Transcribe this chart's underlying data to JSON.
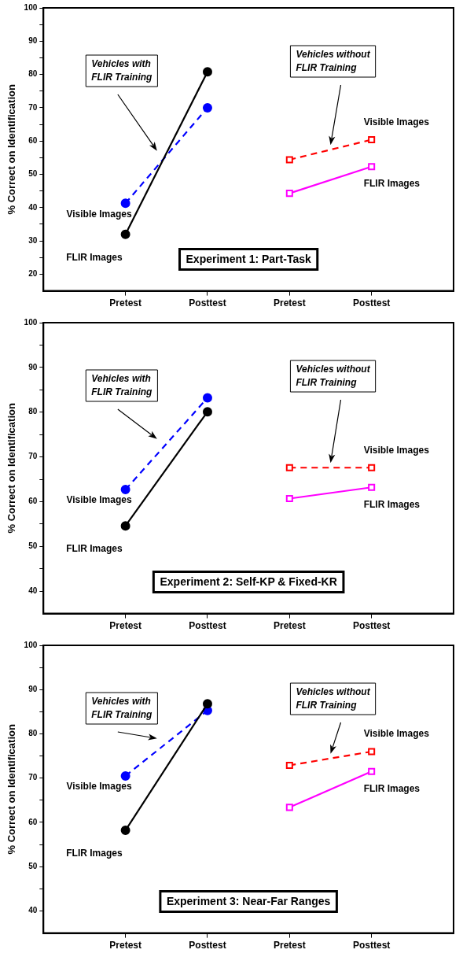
{
  "chart_data": [
    {
      "type": "line",
      "title": "Experiment 1: Part-Task",
      "ylabel": "% Correct on Identification",
      "categories": [
        "Pretest",
        "Posttest",
        "Pretest",
        "Posttest"
      ],
      "series": [
        {
          "name": "Visible Images",
          "color": "#0000ff",
          "values": [
            41.3,
            70,
            null,
            null
          ],
          "marker": "circle",
          "line_style": "dashed"
        },
        {
          "name": "FLIR Images",
          "color": "#000000",
          "values": [
            32,
            80.8,
            null,
            null
          ],
          "marker": "circle",
          "line_style": "solid"
        },
        {
          "name": "Visible Images",
          "color": "#ff0000",
          "values": [
            null,
            null,
            54.4,
            60.4
          ],
          "marker": "square",
          "line_style": "dashed"
        },
        {
          "name": "FLIR Images",
          "color": "#ff00ff",
          "values": [
            null,
            null,
            44.3,
            52.3
          ],
          "marker": "square",
          "line_style": "solid"
        }
      ],
      "annotations": [
        "Vehicles with\nFLIR Training",
        "Vehicles without\nFLIR Training"
      ],
      "ylim": [
        15,
        100
      ],
      "yticks": [
        20,
        {
          "value": 25,
          "label": null
        },
        30,
        {
          "value": 35,
          "label": null
        },
        40,
        {
          "value": 45,
          "label": null
        },
        50,
        {
          "value": 55,
          "label": null
        },
        60,
        {
          "value": 65,
          "label": null
        },
        70,
        {
          "value": 75,
          "label": null
        },
        80,
        {
          "value": 85,
          "label": null
        },
        90,
        {
          "value": 95,
          "label": null
        },
        100
      ],
      "grid": false,
      "legend": false
    },
    {
      "type": "line",
      "title": "Experiment 2: Self-KP & Fixed-KR",
      "ylabel": "% Correct on Identification",
      "categories": [
        "Pretest",
        "Posttest",
        "Pretest",
        "Posttest"
      ],
      "series": [
        {
          "name": "Visible Images",
          "color": "#0000ff",
          "values": [
            62.7,
            83.2,
            null,
            null
          ],
          "marker": "circle",
          "line_style": "dashed"
        },
        {
          "name": "FLIR Images",
          "color": "#000000",
          "values": [
            54.6,
            80.1,
            null,
            null
          ],
          "marker": "circle",
          "line_style": "solid"
        },
        {
          "name": "Visible Images",
          "color": "#ff0000",
          "values": [
            null,
            null,
            67.6,
            67.6
          ],
          "marker": "square",
          "line_style": "dashed"
        },
        {
          "name": "FLIR Images",
          "color": "#ff00ff",
          "values": [
            null,
            null,
            60.7,
            63.2
          ],
          "marker": "square",
          "line_style": "solid"
        }
      ],
      "annotations": [
        "Vehicles with\nFLIR Training",
        "Vehicles without\nFLIR Training"
      ],
      "ylim": [
        35,
        100
      ],
      "yticks": [
        40,
        {
          "value": 45,
          "label": null
        },
        50,
        {
          "value": 55,
          "label": null
        },
        60,
        {
          "value": 65,
          "label": null
        },
        70,
        {
          "value": 75,
          "label": null
        },
        80,
        {
          "value": 85,
          "label": null
        },
        90,
        {
          "value": 95,
          "label": null
        },
        100
      ],
      "grid": false,
      "legend": false
    },
    {
      "type": "line",
      "title": "Experiment 3: Near-Far Ranges",
      "ylabel": "% Correct on Identification",
      "categories": [
        "Pretest",
        "Posttest",
        "Pretest",
        "Posttest"
      ],
      "series": [
        {
          "name": "Visible Images",
          "color": "#0000ff",
          "values": [
            70.5,
            85.3,
            null,
            null
          ],
          "marker": "circle",
          "line_style": "dashed"
        },
        {
          "name": "FLIR Images",
          "color": "#000000",
          "values": [
            58.2,
            86.8,
            null,
            null
          ],
          "marker": "circle",
          "line_style": "solid"
        },
        {
          "name": "Visible Images",
          "color": "#ff0000",
          "values": [
            null,
            null,
            72.9,
            76.0
          ],
          "marker": "square",
          "line_style": "dashed"
        },
        {
          "name": "FLIR Images",
          "color": "#ff00ff",
          "values": [
            null,
            null,
            63.4,
            71.5
          ],
          "marker": "square",
          "line_style": "solid"
        }
      ],
      "annotations": [
        "Vehicles with\nFLIR Training",
        "Vehicles without\nFLIR Training"
      ],
      "ylim": [
        35,
        100
      ],
      "yticks": [
        40,
        {
          "value": 45,
          "label": null
        },
        50,
        {
          "value": 55,
          "label": null
        },
        60,
        {
          "value": 65,
          "label": null
        },
        70,
        {
          "value": 75,
          "label": null
        },
        80,
        {
          "value": 85,
          "label": null
        },
        90,
        {
          "value": 95,
          "label": null
        },
        100
      ],
      "grid": false,
      "legend": false
    }
  ]
}
